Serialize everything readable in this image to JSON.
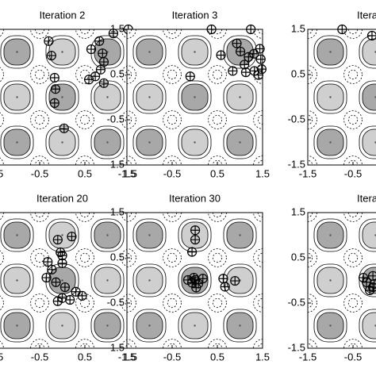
{
  "chart_data": [
    {
      "type": "scatter",
      "title": "Iteration 2",
      "color": "#000000",
      "x": [
        1.46,
        1.13,
        0.82,
        0.64,
        0.89,
        0.92,
        0.85,
        0.73,
        0.59,
        0.92,
        -0.24,
        -0.17,
        -0.15,
        -0.17,
        0.04,
        -0.3
      ],
      "y": [
        1.5,
        1.41,
        1.24,
        1.06,
        0.97,
        0.78,
        0.61,
        0.46,
        0.39,
        0.31,
        0.92,
        0.43,
        0.18,
        -0.13,
        -0.69,
        1.24
      ],
      "xlim": [
        -1.5,
        1.5
      ],
      "ylim": [
        -1.5,
        1.5
      ],
      "xticks": [
        -1.5,
        -0.5,
        0.5,
        1.5
      ],
      "yticks": [
        -1.5,
        -0.5,
        0.5,
        1.5
      ]
    },
    {
      "type": "scatter",
      "title": "Iteration 3",
      "color": "#000000",
      "x": [
        0.37,
        1.24,
        0.93,
        0.58,
        1.01,
        1.19,
        1.31,
        1.46,
        1.44,
        1.1,
        0.84,
        1.13,
        1.32,
        1.41,
        -0.1,
        1.48
      ],
      "y": [
        1.5,
        1.5,
        1.19,
        0.93,
        1.01,
        0.89,
        0.96,
        0.84,
        1.07,
        0.72,
        0.58,
        0.55,
        0.58,
        0.49,
        0.46,
        0.62
      ],
      "xlim": [
        -1.5,
        1.5
      ],
      "ylim": [
        -1.5,
        1.5
      ],
      "xticks": [
        -1.5,
        -0.5,
        0.5,
        1.5
      ],
      "yticks": [
        -1.5,
        -0.5,
        0.5,
        1.5
      ]
    },
    {
      "type": "scatter",
      "title": "Iteration",
      "color": "#000000",
      "x": [
        -0.74,
        -0.08
      ],
      "y": [
        1.5,
        1.36
      ],
      "xlim": [
        -1.5,
        1.5
      ],
      "ylim": [
        -1.5,
        1.5
      ],
      "xticks": [
        -1.5,
        -0.5,
        0.5,
        1.5
      ],
      "yticks": [
        -1.5,
        -0.5,
        0.5,
        1.5
      ]
    },
    {
      "type": "scatter",
      "title": "Iteration 20",
      "color": "#000000",
      "x": [
        -0.1,
        0.21,
        -0.04,
        0,
        -0.23,
        -0.35,
        -0.14,
        0.06,
        0,
        0.17,
        0.3,
        -0.1,
        0.44,
        -0.32,
        0
      ],
      "y": [
        0.9,
        0.97,
        0.62,
        0.38,
        0.24,
        0.06,
        -0.04,
        -0.15,
        -0.39,
        -0.43,
        -0.25,
        -0.46,
        -0.34,
        0.41,
        0.55
      ],
      "xlim": [
        -1.5,
        1.5
      ],
      "ylim": [
        -1.5,
        1.5
      ],
      "xticks": [
        -1.5,
        -0.5,
        0.5,
        1.5
      ],
      "yticks": [
        -1.5,
        -0.5,
        0.5,
        1.5
      ]
    },
    {
      "type": "scatter",
      "title": "Iteration 30",
      "color": "#000000",
      "x": [
        0.01,
        0.01,
        -0.06,
        0.01,
        -0.06,
        0.08,
        0.03,
        -0.15,
        0.18,
        0.63,
        0.89,
        0.67,
        -0.02
      ],
      "y": [
        1.11,
        0.9,
        0.63,
        0.01,
        -0.05,
        -0.07,
        -0.16,
        0.01,
        0.04,
        0.04,
        -0.01,
        -0.14,
        0.06
      ],
      "xlim": [
        -1.5,
        1.5
      ],
      "ylim": [
        -1.5,
        1.5
      ],
      "xticks": [
        -1.5,
        -0.5,
        0.5,
        1.5
      ],
      "yticks": [
        -1.5,
        -0.5,
        0.5,
        1.5
      ]
    },
    {
      "type": "scatter",
      "title": "Iteration",
      "color": "#000000",
      "x": [
        -0.06,
        -0.03,
        -0.2,
        -0.06,
        -0.27,
        -0.13
      ],
      "y": [
        0.1,
        -0.08,
        -0.04,
        -0.15,
        0.06,
        -0.22
      ],
      "xlim": [
        -1.5,
        1.5
      ],
      "ylim": [
        -1.5,
        1.5
      ],
      "xticks": [
        -1.5,
        -0.5,
        0.5,
        1.5
      ],
      "yticks": [
        -1.5,
        -0.5,
        0.5,
        1.5
      ]
    }
  ]
}
